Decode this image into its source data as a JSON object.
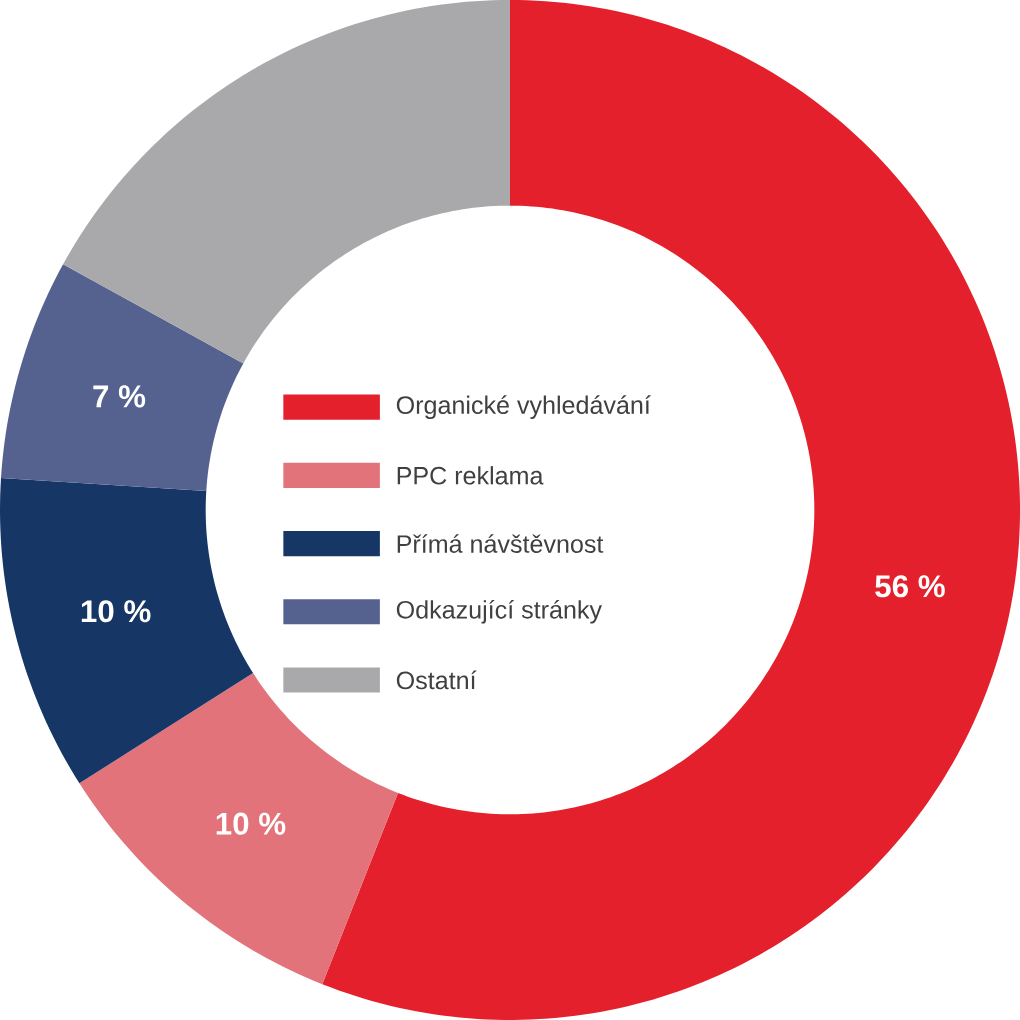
{
  "chart_data": {
    "type": "donut",
    "categories": [
      "Organické vyhledávání",
      "PPC reklama",
      "Přímá návštěvnost",
      "Odkazující stránky",
      "Ostatní"
    ],
    "values": [
      56,
      10,
      10,
      7,
      17
    ],
    "colors": [
      "#e3202b",
      "#e3737b",
      "#163766",
      "#55628f",
      "#a9a9ab"
    ],
    "value_labels": [
      "56 %",
      "10 %",
      "10 %",
      "7 %",
      null
    ],
    "legend": "center"
  }
}
